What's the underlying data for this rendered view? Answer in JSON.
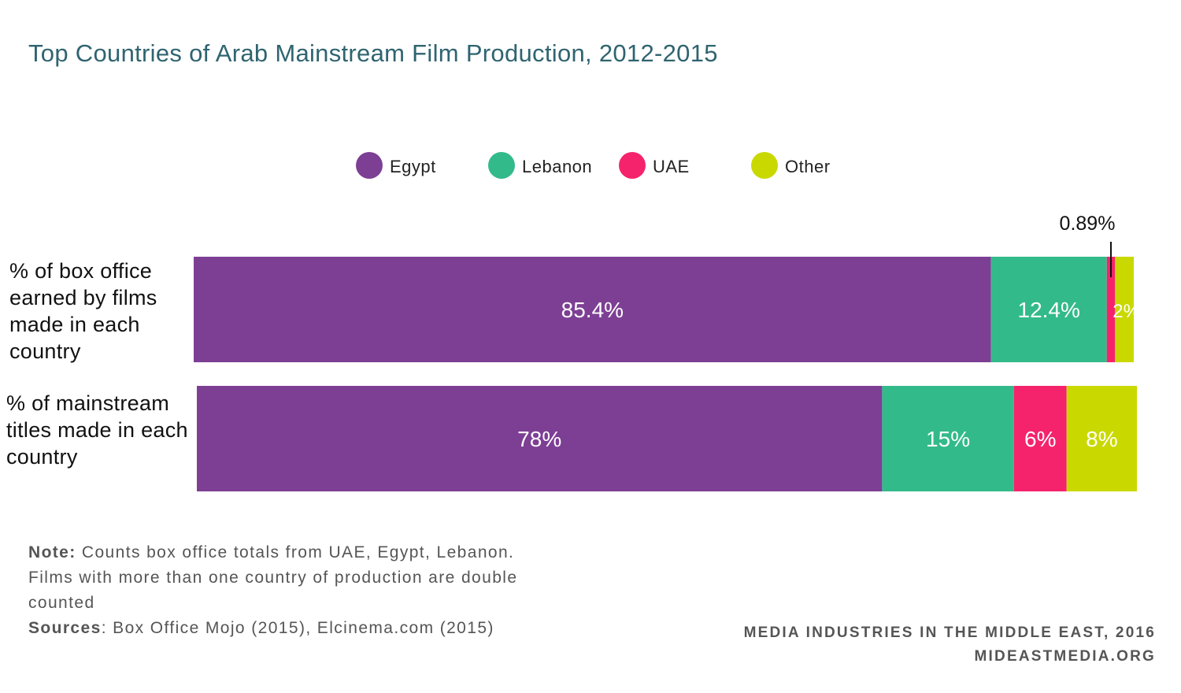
{
  "chart_data": {
    "type": "bar",
    "orientation": "horizontal",
    "stacked": true,
    "title": "Top Countries of Arab Mainstream Film Production, 2012-2015",
    "categories": [
      "% of box office earned by films made in each country",
      "% of mainstream titles made in each country"
    ],
    "series": [
      {
        "name": "Egypt",
        "color": "#7d3f94",
        "values": [
          85.4,
          78
        ],
        "labels": [
          "85.4%",
          "78%"
        ]
      },
      {
        "name": "Lebanon",
        "color": "#33ba8b",
        "values": [
          12.4,
          15
        ],
        "labels": [
          "12.4%",
          "15%"
        ]
      },
      {
        "name": "UAE",
        "color": "#f5236c",
        "values": [
          0.89,
          6
        ],
        "labels": [
          "0.89%",
          "6%"
        ]
      },
      {
        "name": "Other",
        "color": "#c9d900",
        "values": [
          2,
          8
        ],
        "labels": [
          "2%",
          "8%"
        ]
      }
    ],
    "legend_position": "top-center",
    "grid": false
  },
  "footer": {
    "note_label": "Note:",
    "note_text": " Counts box office totals from UAE, Egypt, Lebanon. Films with more than one country of production are double counted",
    "sources_label": "Sources",
    "sources_text": ": Box Office Mojo (2015), Elcinema.com (2015)"
  },
  "credit": {
    "line1": "MEDIA INDUSTRIES IN THE MIDDLE EAST, 2016",
    "line2": "MIDEASTMEDIA.ORG"
  }
}
